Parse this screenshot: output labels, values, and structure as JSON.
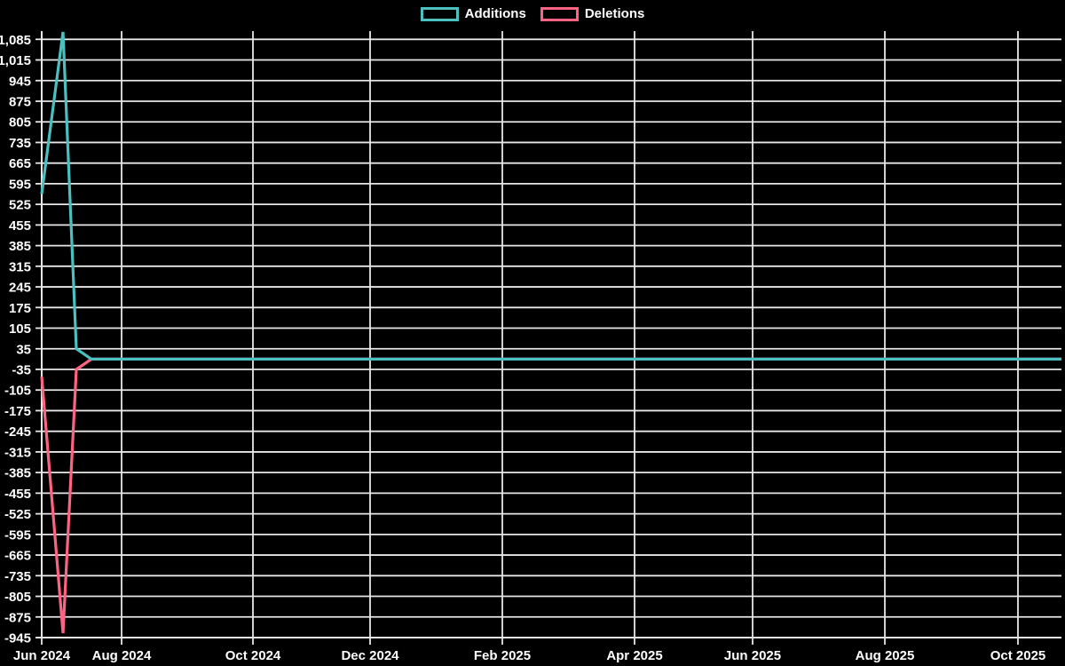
{
  "legend": {
    "items": [
      {
        "label": "Additions",
        "color": "#4bc0c0"
      },
      {
        "label": "Deletions",
        "color": "#ff6384"
      }
    ]
  },
  "chart_data": {
    "type": "line",
    "title": "",
    "legend_position": "top-center",
    "grid": true,
    "background_color": "#000000",
    "grid_color": "#e7e7e7",
    "text_color": "#ffffff",
    "x_axis": {
      "kind": "time, weekly data points",
      "tick_labels": [
        "Jun 2024",
        "Aug 2024",
        "Oct 2024",
        "Dec 2024",
        "Feb 2025",
        "Apr 2025",
        "Jun 2025",
        "Aug 2025",
        "Oct 2025"
      ]
    },
    "y_axis": {
      "min": -945,
      "max": 1113,
      "tick_step": 70,
      "tick_labels": [
        "1,085",
        "1,015",
        "945",
        "875",
        "805",
        "735",
        "665",
        "595",
        "525",
        "455",
        "385",
        "315",
        "245",
        "175",
        "105",
        "35",
        "-35",
        "-105",
        "-175",
        "-245",
        "-315",
        "-385",
        "-455",
        "-525",
        "-595",
        "-665",
        "-735",
        "-805",
        "-875",
        "-945"
      ]
    },
    "series": [
      {
        "name": "Additions",
        "color": "#4bc0c0",
        "week_points": [
          "Jun 2024 wk1",
          "Jun 2024 wk2",
          "Jun 2024 wk3",
          "Jun 2024 wk4",
          "flat 0 through Oct 2025 (chart end)"
        ],
        "values": [
          560,
          1110,
          35,
          0,
          0
        ]
      },
      {
        "name": "Deletions",
        "color": "#ff6384",
        "week_points": [
          "Jun 2024 wk1",
          "Jun 2024 wk2",
          "Jun 2024 wk3",
          "Jun 2024 wk4",
          "flat 0 through Oct 2025 (chart end)"
        ],
        "values": [
          -60,
          -930,
          -35,
          0,
          0
        ]
      }
    ]
  }
}
